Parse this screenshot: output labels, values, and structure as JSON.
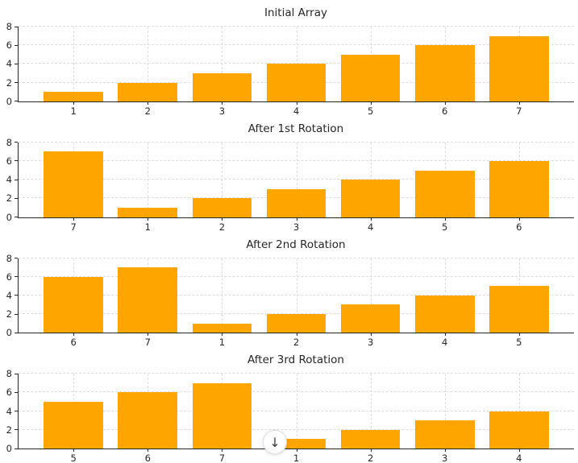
{
  "figure": {
    "background": "#ffffff",
    "text_color": "#262626",
    "axis_color": "#262626",
    "grid_color": "#dcdcdc"
  },
  "chart_data": [
    {
      "type": "bar",
      "title": "Initial Array",
      "categories": [
        "1",
        "2",
        "3",
        "4",
        "5",
        "6",
        "7"
      ],
      "values": [
        1,
        2,
        3,
        4,
        5,
        6,
        7
      ],
      "bar_color": "#FFA500",
      "bar_width": 0.8,
      "xlabel": "",
      "ylabel": "",
      "ylim": [
        0,
        8
      ],
      "yticks": [
        0,
        2,
        4,
        6,
        8
      ],
      "grid": true,
      "legend": false
    },
    {
      "type": "bar",
      "title": "After 1st Rotation",
      "categories": [
        "7",
        "1",
        "2",
        "3",
        "4",
        "5",
        "6"
      ],
      "values": [
        7,
        1,
        2,
        3,
        4,
        5,
        6
      ],
      "bar_color": "#FFA500",
      "bar_width": 0.8,
      "xlabel": "",
      "ylabel": "",
      "ylim": [
        0,
        8
      ],
      "yticks": [
        0,
        2,
        4,
        6,
        8
      ],
      "grid": true,
      "legend": false
    },
    {
      "type": "bar",
      "title": "After 2nd Rotation",
      "categories": [
        "6",
        "7",
        "1",
        "2",
        "3",
        "4",
        "5"
      ],
      "values": [
        6,
        7,
        1,
        2,
        3,
        4,
        5
      ],
      "bar_color": "#FFA500",
      "bar_width": 0.8,
      "xlabel": "",
      "ylabel": "",
      "ylim": [
        0,
        8
      ],
      "yticks": [
        0,
        2,
        4,
        6,
        8
      ],
      "grid": true,
      "legend": false
    },
    {
      "type": "bar",
      "title": "After 3rd Rotation",
      "categories": [
        "5",
        "6",
        "7",
        "1",
        "2",
        "3",
        "4"
      ],
      "values": [
        5,
        6,
        7,
        1,
        2,
        3,
        4
      ],
      "bar_color": "#FFA500",
      "bar_width": 0.8,
      "xlabel": "",
      "ylabel": "",
      "ylim": [
        0,
        8
      ],
      "yticks": [
        0,
        2,
        4,
        6,
        8
      ],
      "grid": true,
      "legend": false
    }
  ],
  "scroll_button": {
    "glyph": "↓"
  }
}
